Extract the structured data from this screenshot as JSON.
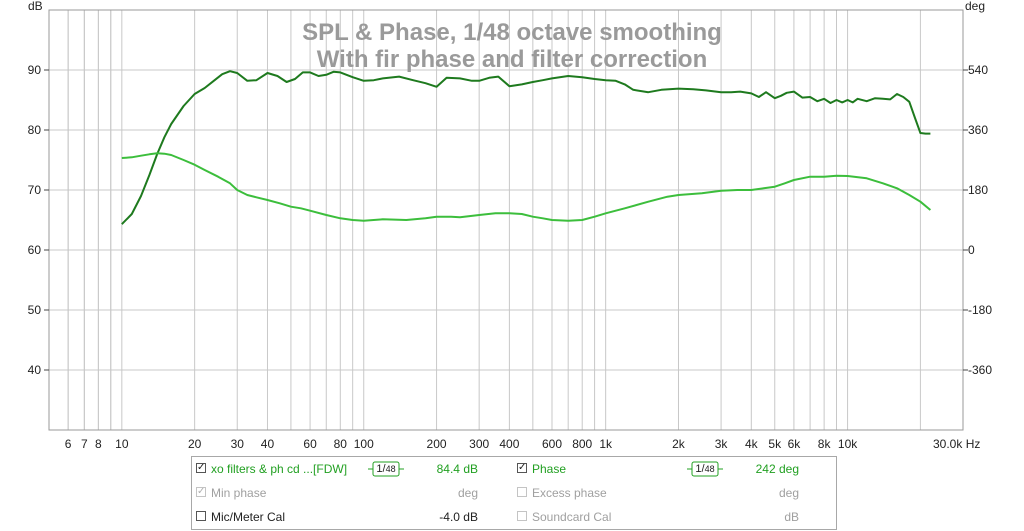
{
  "chart_data": {
    "type": "line",
    "title": "SPL & Phase, 1/48 octave smoothing",
    "subtitle": "With fir phase and filter correction",
    "y_left_unit": "dB",
    "y_right_unit": "deg",
    "x_unit": "Hz",
    "xlim": [
      5,
      30000
    ],
    "ylim_left": [
      30,
      100
    ],
    "ylim_right": [
      -540,
      720
    ],
    "x_scale": "log",
    "grid": true,
    "x_tick_labels": [
      {
        "v": 6,
        "t": "6"
      },
      {
        "v": 7,
        "t": "7"
      },
      {
        "v": 8,
        "t": "8"
      },
      {
        "v": 10,
        "t": "10"
      },
      {
        "v": 20,
        "t": "20"
      },
      {
        "v": 30,
        "t": "30"
      },
      {
        "v": 40,
        "t": "40"
      },
      {
        "v": 60,
        "t": "60"
      },
      {
        "v": 80,
        "t": "80"
      },
      {
        "v": 100,
        "t": "100"
      },
      {
        "v": 200,
        "t": "200"
      },
      {
        "v": 300,
        "t": "300"
      },
      {
        "v": 400,
        "t": "400"
      },
      {
        "v": 600,
        "t": "600"
      },
      {
        "v": 800,
        "t": "800"
      },
      {
        "v": 1000,
        "t": "1k"
      },
      {
        "v": 2000,
        "t": "2k"
      },
      {
        "v": 3000,
        "t": "3k"
      },
      {
        "v": 4000,
        "t": "4k"
      },
      {
        "v": 5000,
        "t": "5k"
      },
      {
        "v": 6000,
        "t": "6k"
      },
      {
        "v": 8000,
        "t": "8k"
      },
      {
        "v": 10000,
        "t": "10k"
      },
      {
        "v": 30000,
        "t": "30.0k Hz"
      }
    ],
    "y_left_ticks": [
      90,
      80,
      70,
      60,
      50,
      40
    ],
    "y_right_ticks": [
      540,
      360,
      180,
      0,
      -180,
      -360
    ],
    "series": [
      {
        "name": "xo filters & ph cd ...[FDW]",
        "axis": "left",
        "color": "#1e7a1e",
        "x": [
          10,
          11,
          12,
          13,
          14,
          15,
          16,
          18,
          20,
          22,
          24,
          26,
          28,
          30,
          33,
          36,
          40,
          44,
          48,
          52,
          56,
          60,
          65,
          70,
          75,
          80,
          90,
          100,
          110,
          120,
          140,
          160,
          180,
          200,
          220,
          250,
          280,
          300,
          330,
          360,
          400,
          450,
          500,
          550,
          600,
          700,
          800,
          900,
          1000,
          1100,
          1200,
          1300,
          1500,
          1700,
          2000,
          2300,
          2600,
          3000,
          3300,
          3600,
          4000,
          4300,
          4600,
          5000,
          5300,
          5600,
          6000,
          6500,
          7000,
          7500,
          8000,
          8500,
          9000,
          9500,
          10000,
          10500,
          11000,
          12000,
          13000,
          14000,
          15000,
          16000,
          17000,
          18000,
          19000,
          20000,
          21000,
          22000
        ],
        "y": [
          64.3,
          66,
          69,
          72.5,
          76,
          78.8,
          81,
          84,
          86,
          87,
          88.2,
          89.3,
          89.8,
          89.5,
          88.2,
          88.3,
          89.5,
          89,
          88,
          88.5,
          89.6,
          89.6,
          89,
          89.2,
          89.7,
          89.6,
          88.8,
          88.2,
          88.3,
          88.6,
          88.9,
          88.3,
          87.8,
          87.2,
          88.7,
          88.6,
          88.2,
          88.2,
          88.7,
          88.9,
          87.3,
          87.6,
          88,
          88.3,
          88.6,
          89,
          88.8,
          88.5,
          88.3,
          88.2,
          87.6,
          86.7,
          86.3,
          86.7,
          86.9,
          86.8,
          86.6,
          86.3,
          86.3,
          86.4,
          86.1,
          85.5,
          86.3,
          85.3,
          85.7,
          86.2,
          86.4,
          85.4,
          85.5,
          84.8,
          85.2,
          84.5,
          85,
          84.6,
          85,
          84.6,
          85.2,
          84.8,
          85.3,
          85.2,
          85.1,
          86,
          85.5,
          84.7,
          82,
          79.5,
          79.4,
          79.4
        ]
      },
      {
        "name": "Phase",
        "axis": "right",
        "color": "#3cbe3c",
        "x": [
          10,
          11,
          12,
          13,
          14,
          15,
          16,
          18,
          20,
          22,
          25,
          28,
          30,
          33,
          36,
          40,
          45,
          50,
          55,
          60,
          70,
          80,
          90,
          100,
          120,
          150,
          180,
          200,
          230,
          250,
          300,
          350,
          400,
          450,
          500,
          550,
          600,
          700,
          800,
          900,
          1000,
          1200,
          1500,
          1800,
          2000,
          2500,
          3000,
          3500,
          4000,
          4500,
          5000,
          5500,
          6000,
          7000,
          8000,
          9000,
          10000,
          12000,
          14000,
          16000,
          18000,
          20000,
          22000
        ],
        "y": [
          276,
          278,
          283,
          287,
          290,
          289,
          285,
          270,
          256,
          240,
          220,
          200,
          180,
          165,
          158,
          150,
          140,
          130,
          125,
          118,
          105,
          95,
          90,
          88,
          92,
          90,
          95,
          100,
          100,
          98,
          105,
          110,
          110,
          108,
          100,
          95,
          90,
          88,
          90,
          100,
          110,
          125,
          145,
          160,
          165,
          170,
          178,
          180,
          180,
          185,
          190,
          200,
          210,
          220,
          220,
          223,
          222,
          215,
          200,
          185,
          165,
          145,
          120
        ]
      }
    ]
  },
  "legend": {
    "row1": {
      "name": "xo filters & ph cd ...[FDW]",
      "smoothing_num": "1",
      "smoothing_den": "48",
      "value": "84.4 dB",
      "checked": "✓"
    },
    "row2": {
      "name": "Min phase",
      "value": "deg",
      "checked": "✓"
    },
    "row3": {
      "name": "Mic/Meter Cal",
      "value": "-4.0 dB",
      "checked": ""
    },
    "col2_row1": {
      "name": "Phase",
      "smoothing_num": "1",
      "smoothing_den": "48",
      "value": "242 deg",
      "checked": "✓"
    },
    "col2_row2": {
      "name": "Excess phase",
      "value": "deg",
      "checked": ""
    },
    "col2_row3": {
      "name": "Soundcard Cal",
      "value": "dB",
      "checked": ""
    }
  }
}
